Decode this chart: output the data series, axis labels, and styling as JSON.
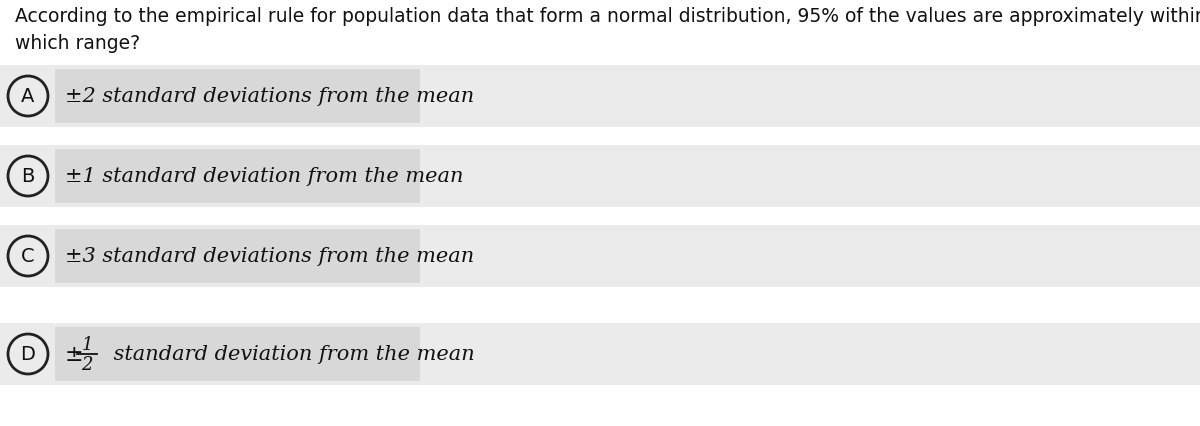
{
  "question_line1": "According to the empirical rule for population data that form a normal distribution, 95% of the values are approximately within",
  "question_line2": "which range?",
  "options": [
    {
      "label": "A",
      "text": "±2 standard deviations from the mean",
      "is_fraction": false
    },
    {
      "label": "B",
      "text": "±1 standard deviation from the mean",
      "is_fraction": false
    },
    {
      "label": "C",
      "text": "±3 standard deviations from the mean",
      "is_fraction": false
    },
    {
      "label": "D",
      "text": " standard deviation from the mean",
      "is_fraction": true
    }
  ],
  "page_bg_color": "#ffffff",
  "option_row_bg_color": "#ebebeb",
  "option_inner_bg_color": "#e0e0e0",
  "circle_edge_color": "#222222",
  "text_color": "#111111",
  "question_fontsize": 13.5,
  "option_fontsize": 15,
  "label_fontsize": 14
}
